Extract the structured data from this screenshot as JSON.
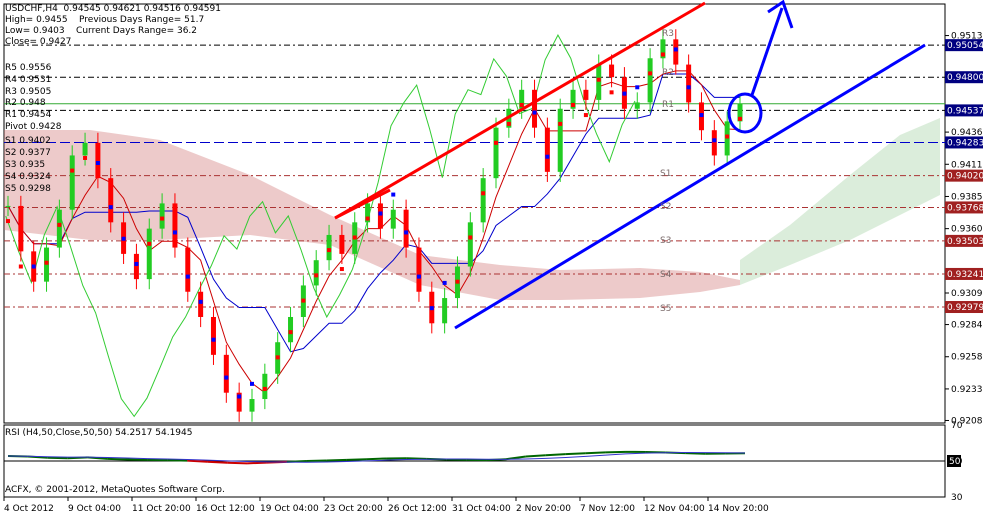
{
  "header": {
    "symbol_line": "USDCHF,H4  0.94545 0.94621 0.94516 0.94591",
    "high_line": "High= 0.9455    Previous Days Range= 51.7",
    "low_line": "Low= 0.9403    Current Days Range= 36.2",
    "close_line": "Close= 0.9427"
  },
  "pivots": [
    {
      "label": "R5 0.9556",
      "key": "R5",
      "value": 0.9556
    },
    {
      "label": "R4 0.9531",
      "key": "R4",
      "value": 0.9531
    },
    {
      "label": "R3 0.9505",
      "key": "R3",
      "value": 0.9505
    },
    {
      "label": "R2 0.948",
      "key": "R2",
      "value": 0.948
    },
    {
      "label": "R1 0.9454",
      "key": "R1",
      "value": 0.9454
    },
    {
      "label": "Pivot 0.9428",
      "key": "P",
      "value": 0.9428
    },
    {
      "label": "S1 0.9402",
      "key": "S1",
      "value": 0.9402
    },
    {
      "label": "S2 0.9377",
      "key": "S2",
      "value": 0.9377
    },
    {
      "label": "S3 0.935",
      "key": "S3",
      "value": 0.935
    },
    {
      "label": "S4 0.9324",
      "key": "S4",
      "value": 0.9324
    },
    {
      "label": "S5 0.9298",
      "key": "S5",
      "value": 0.9298
    }
  ],
  "chart_labels": [
    "R3",
    "R2",
    "R1",
    "S1",
    "S2",
    "S3",
    "S4",
    "S5"
  ],
  "colors": {
    "bull": "#22cc22",
    "bear": "#ff0000",
    "sar": "#0000ff",
    "channel_upper": "#ff0000",
    "channel_lower": "#0000ff",
    "ichimoku_bull": "#99cc99",
    "ichimoku_bear": "#cc6666",
    "chikou": "#33cc33",
    "kijun": "#0000cc",
    "tenkan": "#cc0000",
    "grid": "#000000"
  },
  "rsi": {
    "title": "RSI (H4,50,Close,50,50) 54.2517 54.1945",
    "levels": [
      "70",
      "50",
      "30"
    ],
    "current_label": "50"
  },
  "copyright": "ACFX, © 2001-2012, MetaQuotes Software Corp.",
  "chart_data": {
    "type": "candlestick",
    "symbol": "USDCHF",
    "timeframe": "H4",
    "ylim": [
      0.9206,
      0.9538
    ],
    "price_ticks": [
      "0.95130",
      "0.94800",
      "0.94365",
      "0.94110",
      "0.93855",
      "0.93600",
      "0.93090",
      "0.92840",
      "0.92585",
      "0.92330",
      "0.92080"
    ],
    "price_tick_values": [
      0.9513,
      0.948,
      0.94365,
      0.9411,
      0.93855,
      0.936,
      0.9309,
      0.9284,
      0.92585,
      0.9233,
      0.9208
    ],
    "right_level_tags": [
      "0.95054",
      "0.94800",
      "0.94537",
      "0.94283",
      "0.94020",
      "0.93768",
      "0.93503",
      "0.93241",
      "0.92979"
    ],
    "right_level_values": [
      0.95054,
      0.948,
      0.94537,
      0.94283,
      0.9402,
      0.93768,
      0.93503,
      0.93241,
      0.92979
    ],
    "x_tick_labels": [
      "4 Oct 2012",
      "9 Oct 04:00",
      "11 Oct 20:00",
      "16 Oct 12:00",
      "19 Oct 04:00",
      "23 Oct 20:00",
      "26 Oct 12:00",
      "31 Oct 04:00",
      "2 Nov 20:00",
      "7 Nov 12:00",
      "12 Nov 04:00",
      "14 Nov 20:00"
    ],
    "close_path": [
      0.9378,
      0.9342,
      0.9318,
      0.9345,
      0.9375,
      0.9418,
      0.9428,
      0.94,
      0.9365,
      0.934,
      0.932,
      0.936,
      0.938,
      0.9345,
      0.931,
      0.929,
      0.926,
      0.923,
      0.9215,
      0.9225,
      0.9245,
      0.927,
      0.929,
      0.9315,
      0.9335,
      0.9355,
      0.934,
      0.9365,
      0.938,
      0.936,
      0.9375,
      0.9345,
      0.931,
      0.9285,
      0.9305,
      0.933,
      0.9365,
      0.94,
      0.944,
      0.9455,
      0.947,
      0.944,
      0.9405,
      0.9455,
      0.947,
      0.9462,
      0.949,
      0.948,
      0.9455,
      0.946,
      0.9495,
      0.951,
      0.949,
      0.946,
      0.9438,
      0.9418,
      0.9445,
      0.9459
    ],
    "rsi_ylim": [
      30,
      70
    ],
    "rsi_values": [
      52.8,
      52.5,
      51.8,
      51.5,
      52.0,
      51.2,
      50.8,
      50.6,
      50.4,
      50.2,
      49.6,
      49.0,
      48.7,
      49.1,
      49.5,
      50.0,
      50.3,
      50.6,
      51.0,
      51.4,
      51.5,
      51.2,
      50.8,
      50.6,
      50.5,
      51.0,
      52.5,
      53.2,
      53.8,
      54.3,
      54.8,
      55.1,
      55.0,
      54.7,
      54.4,
      54.0,
      54.2,
      54.3
    ]
  }
}
